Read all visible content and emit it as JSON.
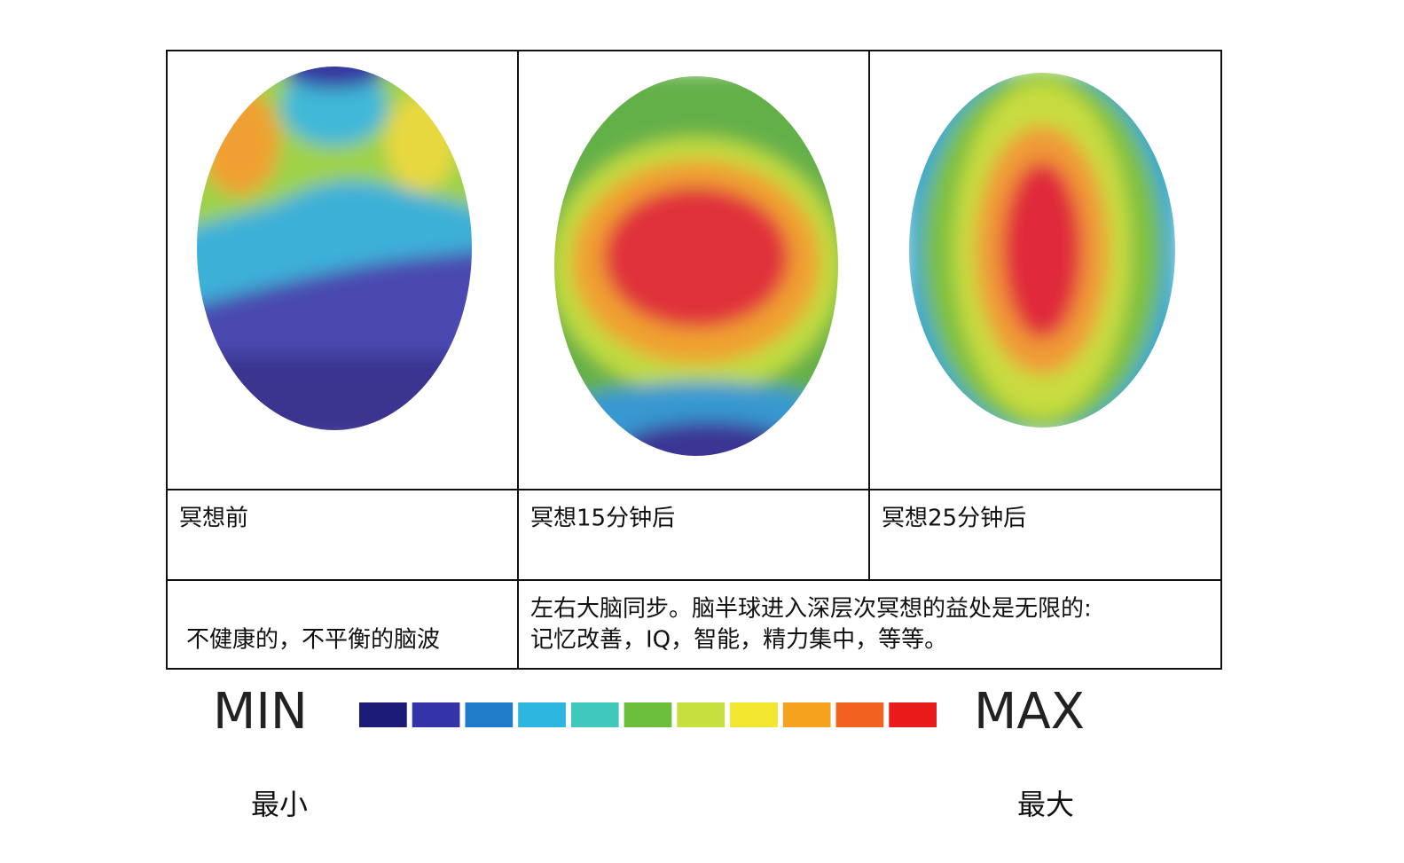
{
  "table": {
    "captions": [
      "冥想前",
      "冥想15分钟后",
      "冥想25分钟后"
    ],
    "descriptions": [
      {
        "lines": [
          "不健康的，不平衡的脑波"
        ]
      },
      {
        "lines": [
          "左右大脑同步。脑半球进入深层次冥想的益处是无限的:",
          "记忆改善，IQ，智能，精力集中，等等。"
        ]
      }
    ]
  },
  "legend": {
    "min": "MIN",
    "max": "MAX",
    "min_cn": "最小",
    "max_cn": "最大",
    "colors": [
      "#1c1c78",
      "#3434a8",
      "#1f7cc8",
      "#2cb6e0",
      "#40c8bc",
      "#6cbf3c",
      "#c8e03c",
      "#f2e62e",
      "#f5a21e",
      "#f0621e",
      "#e81a1a"
    ]
  }
}
